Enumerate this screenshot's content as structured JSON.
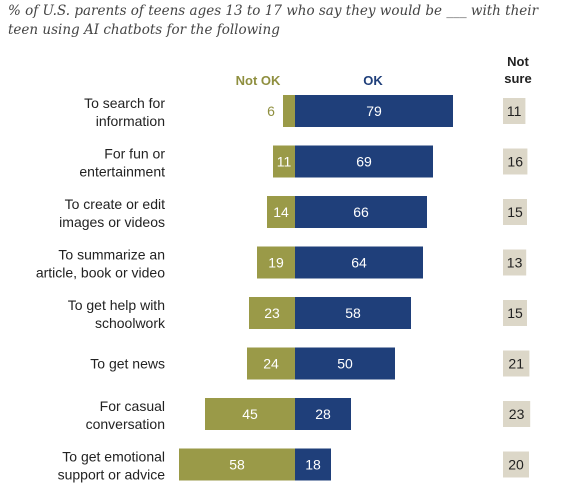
{
  "subtitle": "% of U.S. parents of teens ages 13 to 17 who say they would be ___ with their teen using AI chatbots for the following",
  "colors": {
    "not_ok": "#9a9a48",
    "ok": "#1f3f7a",
    "not_sure_box": "#dcd7c8",
    "label_text": "#222222",
    "not_ok_header": "#8f8f3f",
    "ok_header": "#1f3f7a"
  },
  "chart_data": {
    "type": "bar",
    "orientation": "diverging-horizontal",
    "column_headers": {
      "not_ok": "Not OK",
      "ok": "OK",
      "not_sure": [
        "Not",
        "sure"
      ]
    },
    "categories": [
      [
        "To search for",
        "information"
      ],
      [
        "For fun or",
        "entertainment"
      ],
      [
        "To create or edit",
        "images or videos"
      ],
      [
        "To summarize an",
        "article, book or video"
      ],
      [
        "To get help with",
        "schoolwork"
      ],
      [
        "To get news"
      ],
      [
        "For casual",
        "conversation"
      ],
      [
        "To get emotional",
        "support or advice"
      ]
    ],
    "series": [
      {
        "name": "Not OK",
        "values": [
          6,
          11,
          14,
          19,
          23,
          24,
          45,
          58
        ]
      },
      {
        "name": "OK",
        "values": [
          79,
          69,
          66,
          64,
          58,
          50,
          28,
          18
        ]
      },
      {
        "name": "Not sure",
        "values": [
          11,
          16,
          15,
          13,
          15,
          21,
          23,
          20
        ]
      }
    ]
  }
}
